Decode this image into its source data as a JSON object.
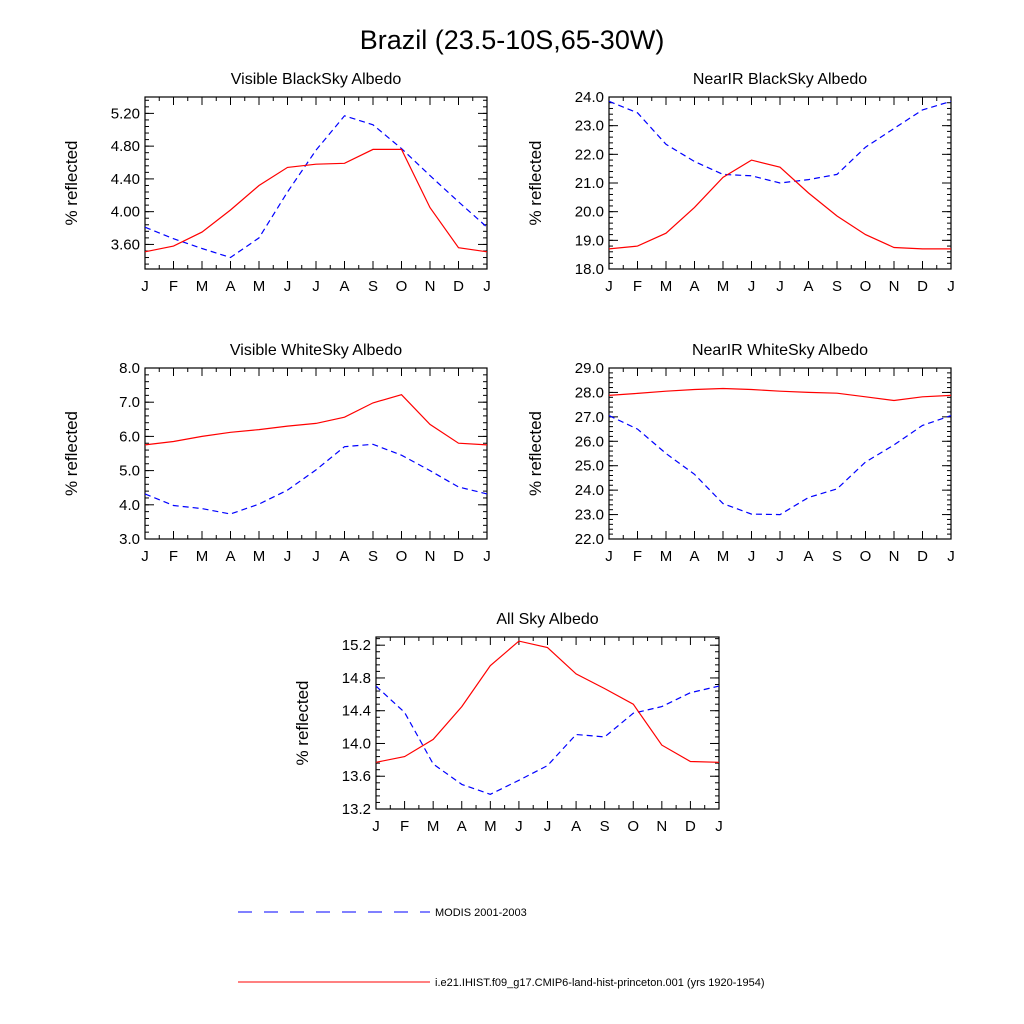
{
  "figure": {
    "title": "Brazil (23.5-10S,65-30W)"
  },
  "colors": {
    "modis": "#0000ff",
    "model": "#ff0000",
    "axis": "#000000"
  },
  "legend": {
    "entries": [
      {
        "label": "MODIS 2001-2003",
        "style": "dashed",
        "color": "#0000ff"
      },
      {
        "label": "i.e21.IHIST.f09_g17.CMIP6-land-hist-princeton.001 (yrs 1920-1954)",
        "style": "solid",
        "color": "#ff0000"
      }
    ]
  },
  "chart_data": [
    {
      "type": "line",
      "title": "Visible BlackSky Albedo",
      "ylabel": "% reflected",
      "x": [
        "J",
        "F",
        "M",
        "A",
        "M",
        "J",
        "J",
        "A",
        "S",
        "O",
        "N",
        "D",
        "J"
      ],
      "ylim": [
        3.3,
        5.4
      ],
      "yticks": [
        3.6,
        4.0,
        4.4,
        4.8,
        5.2
      ],
      "ytick_labels": [
        "3.60",
        "4.00",
        "4.40",
        "4.80",
        "5.20"
      ],
      "series": [
        {
          "name": "MODIS 2001-2003",
          "style": "dashed",
          "values": [
            3.81,
            3.67,
            3.55,
            3.44,
            3.68,
            4.24,
            4.75,
            5.17,
            5.06,
            4.77,
            4.44,
            4.12,
            3.81
          ]
        },
        {
          "name": "i.e21.IHIST.f09_g17.CMIP6-land-hist-princeton.001 (yrs 1920-1954)",
          "style": "solid",
          "values": [
            3.51,
            3.58,
            3.75,
            4.02,
            4.32,
            4.54,
            4.58,
            4.59,
            4.76,
            4.76,
            4.05,
            3.56,
            3.51
          ]
        }
      ]
    },
    {
      "type": "line",
      "title": "NearIR BlackSky Albedo",
      "ylabel": "% reflected",
      "x": [
        "J",
        "F",
        "M",
        "A",
        "M",
        "J",
        "J",
        "A",
        "S",
        "O",
        "N",
        "D",
        "J"
      ],
      "ylim": [
        18.0,
        24.0
      ],
      "yticks": [
        18.0,
        19.0,
        20.0,
        21.0,
        22.0,
        23.0,
        24.0
      ],
      "ytick_labels": [
        "18.0",
        "19.0",
        "20.0",
        "21.0",
        "22.0",
        "23.0",
        "24.0"
      ],
      "series": [
        {
          "name": "MODIS 2001-2003",
          "style": "dashed",
          "values": [
            23.85,
            23.45,
            22.35,
            21.75,
            21.3,
            21.25,
            21.0,
            21.12,
            21.3,
            22.25,
            22.9,
            23.55,
            23.85
          ]
        },
        {
          "name": "i.e21.IHIST.f09_g17.CMIP6-land-hist-princeton.001 (yrs 1920-1954)",
          "style": "solid",
          "values": [
            18.7,
            18.8,
            19.25,
            20.15,
            21.2,
            21.8,
            21.55,
            20.65,
            19.85,
            19.2,
            18.75,
            18.7,
            18.7
          ]
        }
      ]
    },
    {
      "type": "line",
      "title": "Visible WhiteSky Albedo",
      "ylabel": "% reflected",
      "x": [
        "J",
        "F",
        "M",
        "A",
        "M",
        "J",
        "J",
        "A",
        "S",
        "O",
        "N",
        "D",
        "J"
      ],
      "ylim": [
        3.0,
        8.0
      ],
      "yticks": [
        3.0,
        4.0,
        5.0,
        6.0,
        7.0,
        8.0
      ],
      "ytick_labels": [
        "3.0",
        "4.0",
        "5.0",
        "6.0",
        "7.0",
        "8.0"
      ],
      "series": [
        {
          "name": "MODIS 2001-2003",
          "style": "dashed",
          "values": [
            4.32,
            3.98,
            3.89,
            3.73,
            4.02,
            4.43,
            5.02,
            5.7,
            5.77,
            5.45,
            5.0,
            4.52,
            4.32
          ]
        },
        {
          "name": "i.e21.IHIST.f09_g17.CMIP6-land-hist-princeton.001 (yrs 1920-1954)",
          "style": "solid",
          "values": [
            5.75,
            5.85,
            6.0,
            6.12,
            6.2,
            6.3,
            6.38,
            6.56,
            6.98,
            7.22,
            6.35,
            5.8,
            5.75
          ]
        }
      ]
    },
    {
      "type": "line",
      "title": "NearIR WhiteSky Albedo",
      "ylabel": "% reflected",
      "x": [
        "J",
        "F",
        "M",
        "A",
        "M",
        "J",
        "J",
        "A",
        "S",
        "O",
        "N",
        "D",
        "J"
      ],
      "ylim": [
        22.0,
        29.0
      ],
      "yticks": [
        22.0,
        23.0,
        24.0,
        25.0,
        26.0,
        27.0,
        28.0,
        29.0
      ],
      "ytick_labels": [
        "22.0",
        "23.0",
        "24.0",
        "25.0",
        "26.0",
        "27.0",
        "28.0",
        "29.0"
      ],
      "series": [
        {
          "name": "MODIS 2001-2003",
          "style": "dashed",
          "values": [
            27.05,
            26.5,
            25.5,
            24.65,
            23.45,
            23.02,
            23.0,
            23.7,
            24.05,
            25.15,
            25.85,
            26.65,
            27.05
          ]
        },
        {
          "name": "i.e21.IHIST.f09_g17.CMIP6-land-hist-princeton.001 (yrs 1920-1954)",
          "style": "solid",
          "values": [
            27.88,
            27.96,
            28.05,
            28.12,
            28.16,
            28.12,
            28.05,
            28.0,
            27.97,
            27.82,
            27.67,
            27.82,
            27.88
          ]
        }
      ]
    },
    {
      "type": "line",
      "title": "All Sky Albedo",
      "ylabel": "% reflected",
      "x": [
        "J",
        "F",
        "M",
        "A",
        "M",
        "J",
        "J",
        "A",
        "S",
        "O",
        "N",
        "D",
        "J"
      ],
      "ylim": [
        13.2,
        15.3
      ],
      "yticks": [
        13.2,
        13.6,
        14.0,
        14.4,
        14.8,
        15.2
      ],
      "ytick_labels": [
        "13.2",
        "13.6",
        "14.0",
        "14.4",
        "14.8",
        "15.2"
      ],
      "series": [
        {
          "name": "MODIS 2001-2003",
          "style": "dashed",
          "values": [
            14.7,
            14.38,
            13.75,
            13.5,
            13.38,
            13.55,
            13.73,
            14.11,
            14.08,
            14.37,
            14.45,
            14.62,
            14.7
          ]
        },
        {
          "name": "i.e21.IHIST.f09_g17.CMIP6-land-hist-princeton.001 (yrs 1920-1954)",
          "style": "solid",
          "values": [
            13.77,
            13.84,
            14.05,
            14.45,
            14.95,
            15.25,
            15.17,
            14.85,
            14.67,
            14.48,
            13.98,
            13.78,
            13.77
          ]
        }
      ]
    }
  ]
}
